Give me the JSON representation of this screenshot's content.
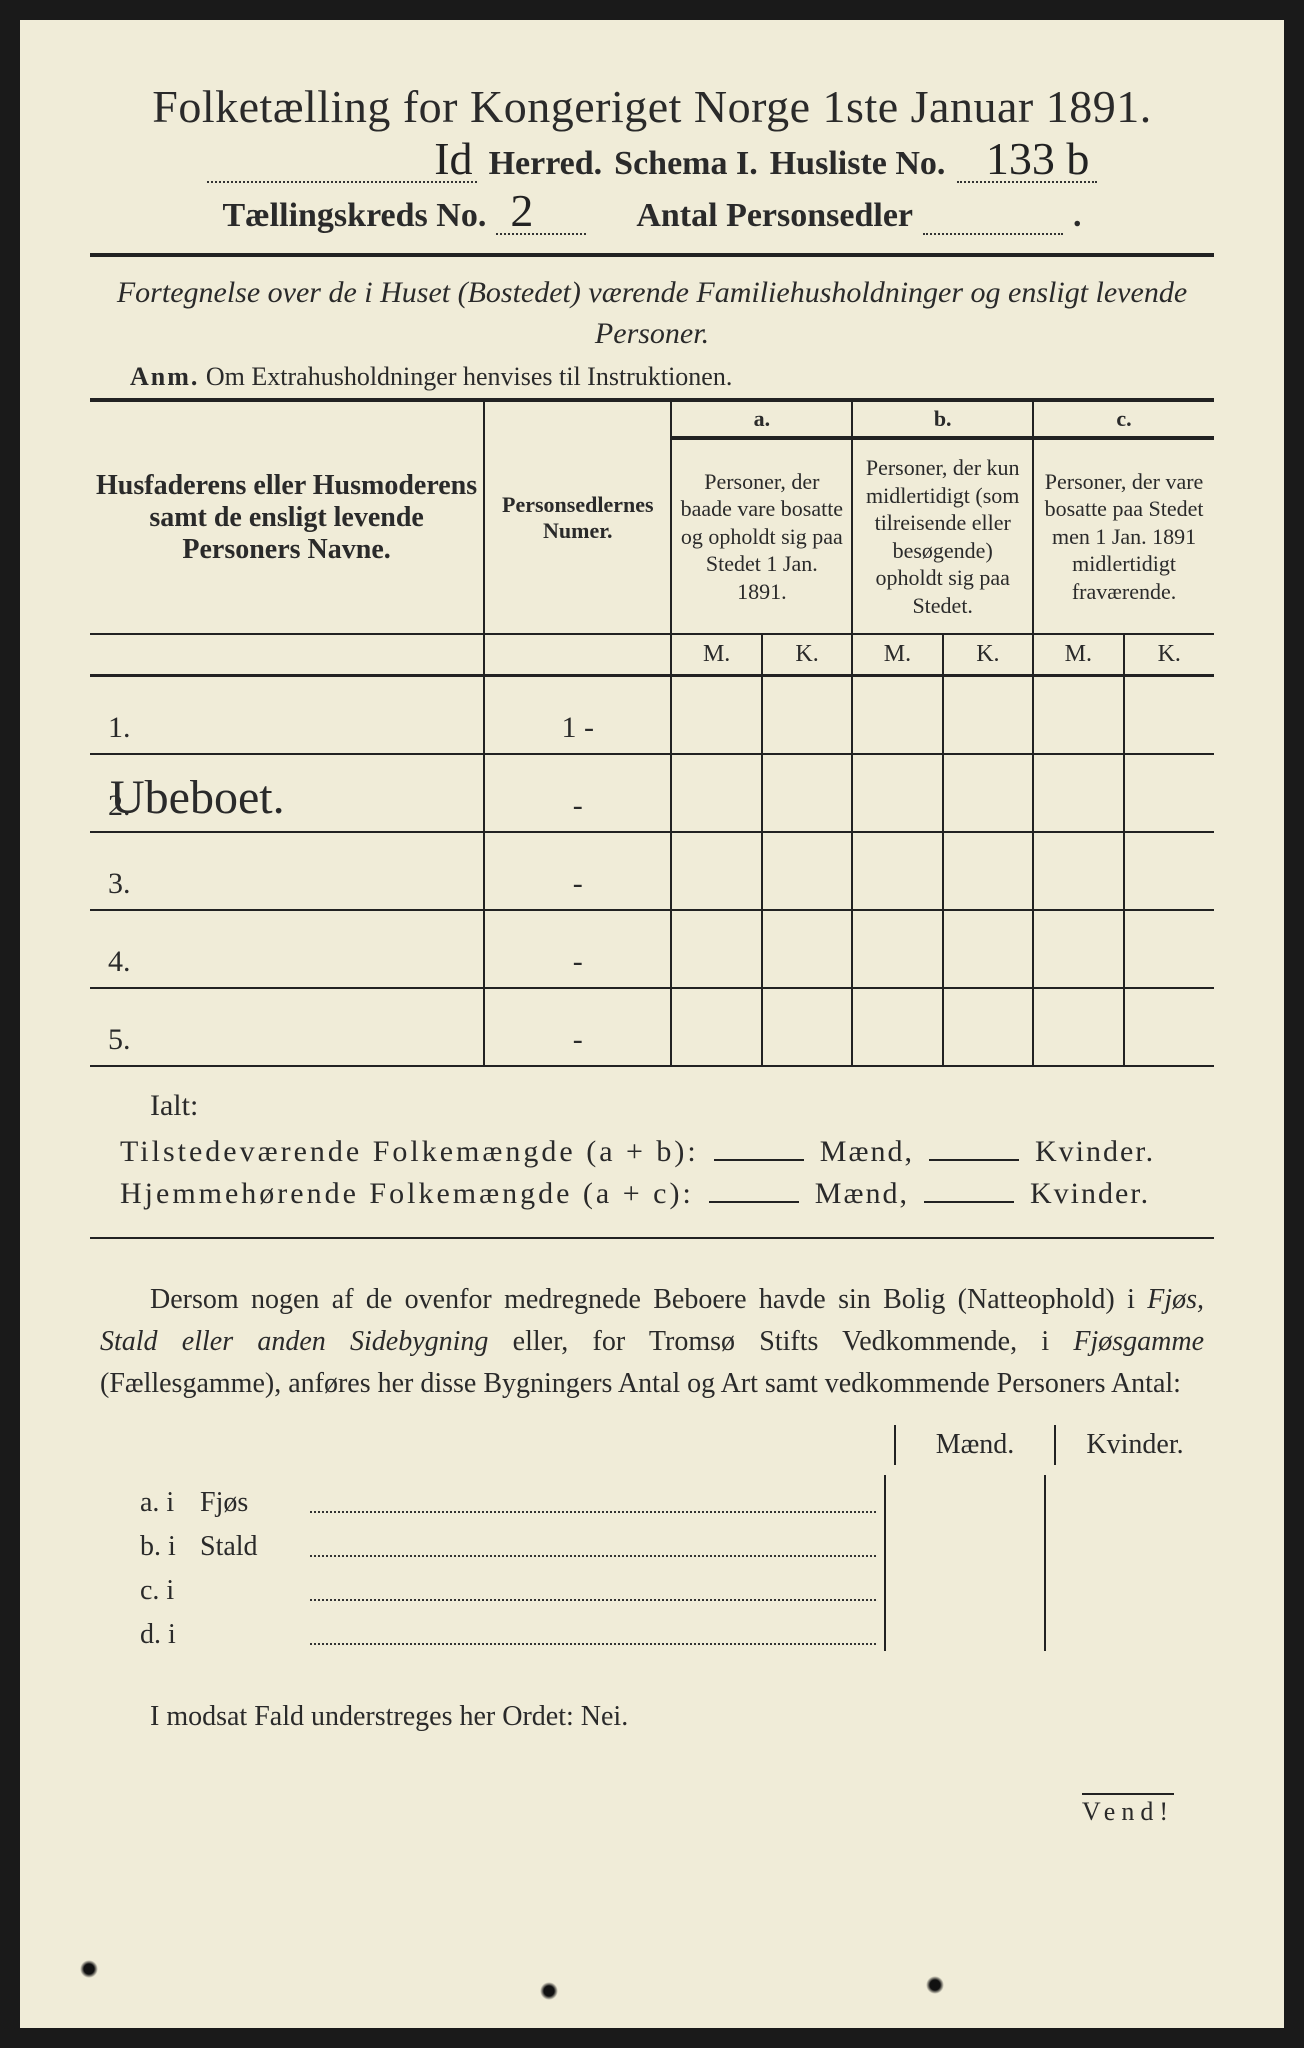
{
  "background_color": "#f0ecd8",
  "text_color": "#2a2a2a",
  "handwriting_color": "#222222",
  "title": "Folketælling for Kongeriget Norge 1ste Januar 1891.",
  "line2": {
    "herred_handwritten": "Id",
    "herred_label": "Herred.",
    "schema_label": "Schema I.",
    "husliste_label": "Husliste No.",
    "husliste_value": "133 b"
  },
  "line3": {
    "kreds_label": "Tællingskreds No.",
    "kreds_value": "2",
    "antal_label": "Antal Personsedler",
    "antal_value": ""
  },
  "subtitle": "Fortegnelse over de i Huset (Bostedet) værende Familiehusholdninger og ensligt levende Personer.",
  "anm_label": "Anm.",
  "anm_text": "Om Extrahusholdninger henvises til Instruktionen.",
  "table": {
    "col_name": "Husfaderens eller Husmoderens samt de ensligt levende Personers Navne.",
    "col_num": "Personsedlernes Numer.",
    "abc": {
      "a": "a.",
      "b": "b.",
      "c": "c."
    },
    "col_a": "Personer, der baade vare bosatte og opholdt sig paa Stedet 1 Jan. 1891.",
    "col_b": "Personer, der kun midlertidigt (som tilreisende eller besøgende) opholdt sig paa Stedet.",
    "col_c": "Personer, der vare bosatte paa Stedet men 1 Jan. 1891 midlertidigt fraværende.",
    "m": "M.",
    "k": "K.",
    "rows": [
      {
        "n": "1.",
        "name": "",
        "num": "1 -"
      },
      {
        "n": "2.",
        "name": "Ubeboet.",
        "num": "-"
      },
      {
        "n": "3.",
        "name": "",
        "num": "-"
      },
      {
        "n": "4.",
        "name": "",
        "num": "-"
      },
      {
        "n": "5.",
        "name": "",
        "num": "-"
      }
    ]
  },
  "ialt": "Ialt:",
  "sum1_label": "Tilstedeværende Folkemængde (a + b):",
  "sum2_label": "Hjemmehørende Folkemængde (a + c):",
  "maend": "Mænd,",
  "kvinder": "Kvinder.",
  "paragraph": "Dersom nogen af de ovenfor medregnede Beboere havde sin Bolig (Natteophold) i Fjøs, Stald eller anden Sidebygning eller, for Tromsø Stifts Vedkommende, i Fjøsgamme (Fællesgamme), anføres her disse Bygningers Antal og Art samt vedkommende Personers Antal:",
  "mk_head_m": "Mænd.",
  "mk_head_k": "Kvinder.",
  "bygninger": [
    {
      "lead": "a.  i",
      "label": "Fjøs"
    },
    {
      "lead": "b.  i",
      "label": "Stald"
    },
    {
      "lead": "c.  i",
      "label": ""
    },
    {
      "lead": "d.  i",
      "label": ""
    }
  ],
  "final": "I modsat Fald understreges her Ordet: Nei.",
  "vend": "Vend!"
}
